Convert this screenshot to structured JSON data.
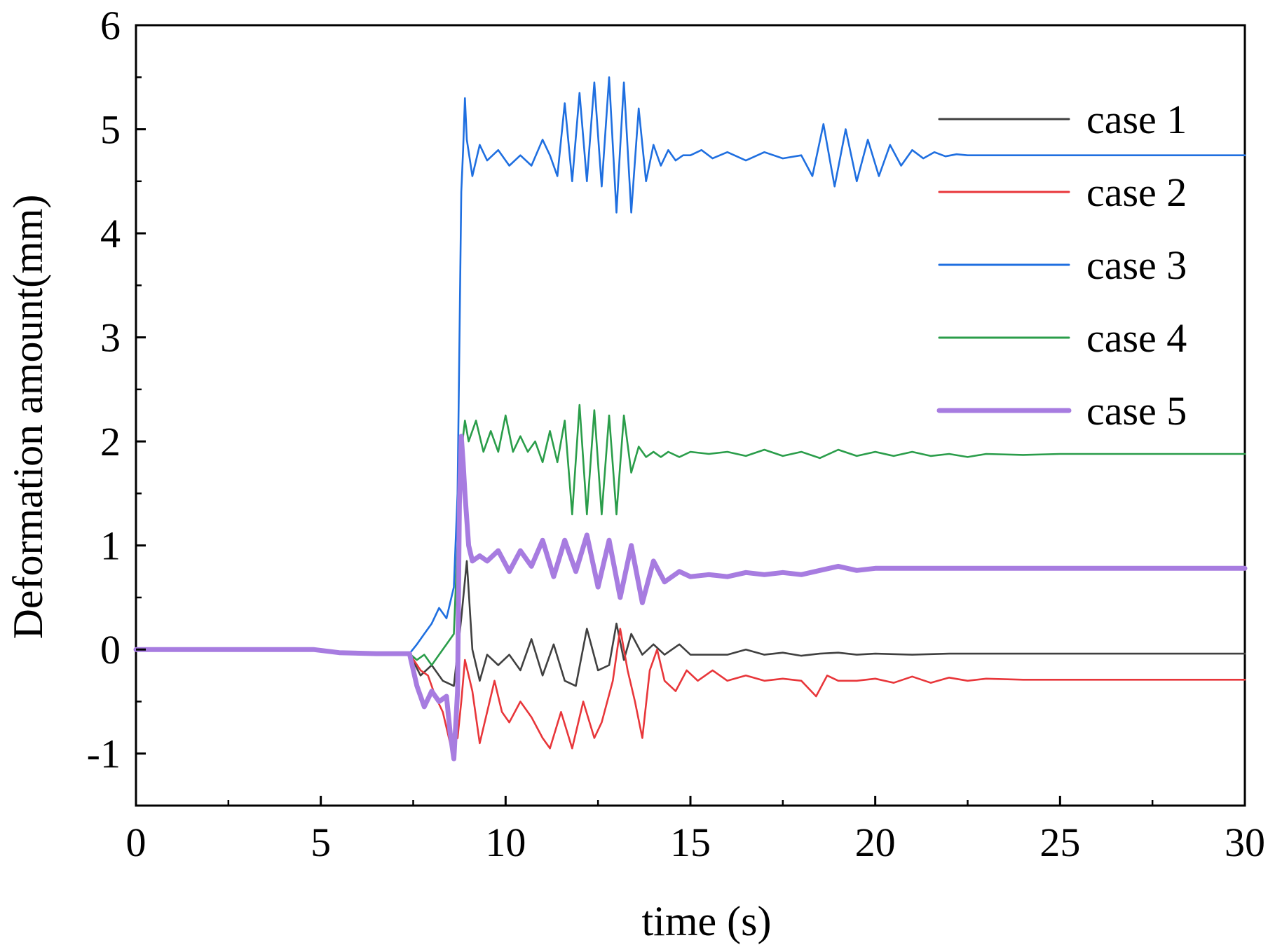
{
  "chart_data": {
    "type": "line",
    "xlabel": "time (s)",
    "ylabel": "Deformation amount(mm)",
    "xlim": [
      0,
      30
    ],
    "ylim": [
      -1.5,
      6
    ],
    "xticks": [
      0,
      5,
      10,
      15,
      20,
      25,
      30
    ],
    "yticks": [
      -1,
      0,
      1,
      2,
      3,
      4,
      5,
      6
    ],
    "xtick_labels": [
      "0",
      "5",
      "10",
      "15",
      "20",
      "25",
      "30"
    ],
    "ytick_labels": [
      "-1",
      "0",
      "1",
      "2",
      "3",
      "4",
      "5",
      "6"
    ],
    "grid": false,
    "legend_position": "top-right",
    "series": [
      {
        "name": "case 1",
        "color": "#404040",
        "thick": false,
        "x": [
          0,
          4.8,
          5.5,
          6.5,
          7.4,
          7.7,
          8.0,
          8.3,
          8.6,
          8.8,
          8.95,
          9.1,
          9.3,
          9.5,
          9.8,
          10.1,
          10.4,
          10.7,
          11.0,
          11.3,
          11.6,
          11.9,
          12.2,
          12.5,
          12.8,
          13.0,
          13.2,
          13.4,
          13.7,
          14.0,
          14.3,
          14.7,
          15.0,
          15.5,
          16.0,
          16.5,
          17.0,
          17.5,
          18.0,
          18.5,
          19.0,
          19.5,
          20.0,
          21.0,
          22.0,
          23.0,
          24.0,
          25.0,
          27.0,
          30.0
        ],
        "y": [
          0,
          0,
          -0.03,
          -0.04,
          -0.04,
          -0.25,
          -0.15,
          -0.3,
          -0.35,
          0.3,
          0.85,
          0.0,
          -0.3,
          -0.05,
          -0.15,
          -0.05,
          -0.2,
          0.1,
          -0.25,
          0.05,
          -0.3,
          -0.35,
          0.2,
          -0.2,
          -0.15,
          0.25,
          -0.1,
          0.15,
          -0.05,
          0.05,
          -0.05,
          0.05,
          -0.05,
          -0.05,
          -0.05,
          0.0,
          -0.05,
          -0.03,
          -0.06,
          -0.04,
          -0.03,
          -0.05,
          -0.04,
          -0.05,
          -0.04,
          -0.04,
          -0.04,
          -0.04,
          -0.04,
          -0.04
        ]
      },
      {
        "name": "case 2",
        "color": "#e8363a",
        "thick": false,
        "x": [
          0,
          4.8,
          5.5,
          6.5,
          7.4,
          7.7,
          7.9,
          8.1,
          8.3,
          8.5,
          8.7,
          8.8,
          8.9,
          9.1,
          9.3,
          9.5,
          9.7,
          9.9,
          10.1,
          10.4,
          10.7,
          11.0,
          11.2,
          11.5,
          11.8,
          12.1,
          12.4,
          12.6,
          12.9,
          13.1,
          13.3,
          13.5,
          13.7,
          13.9,
          14.1,
          14.3,
          14.6,
          14.9,
          15.2,
          15.6,
          16.0,
          16.5,
          17.0,
          17.5,
          18.0,
          18.4,
          18.7,
          19.0,
          19.5,
          20.0,
          20.5,
          21.0,
          21.5,
          22.0,
          22.5,
          23.0,
          24.0,
          25.0,
          27.0,
          30.0
        ],
        "y": [
          0,
          0,
          -0.03,
          -0.04,
          -0.04,
          -0.2,
          -0.25,
          -0.45,
          -0.6,
          -0.9,
          -0.85,
          -0.5,
          -0.1,
          -0.4,
          -0.9,
          -0.6,
          -0.3,
          -0.6,
          -0.7,
          -0.5,
          -0.65,
          -0.85,
          -0.95,
          -0.6,
          -0.95,
          -0.5,
          -0.85,
          -0.7,
          -0.3,
          0.2,
          -0.2,
          -0.5,
          -0.85,
          -0.2,
          0.0,
          -0.3,
          -0.4,
          -0.2,
          -0.3,
          -0.2,
          -0.3,
          -0.25,
          -0.3,
          -0.28,
          -0.3,
          -0.45,
          -0.25,
          -0.3,
          -0.3,
          -0.28,
          -0.32,
          -0.26,
          -0.32,
          -0.27,
          -0.3,
          -0.28,
          -0.29,
          -0.29,
          -0.29,
          -0.29
        ]
      },
      {
        "name": "case 3",
        "color": "#1f6fe0",
        "thick": false,
        "x": [
          0,
          4.8,
          5.5,
          6.5,
          7.4,
          7.6,
          7.8,
          8.0,
          8.2,
          8.4,
          8.6,
          8.7,
          8.8,
          8.85,
          8.9,
          8.95,
          9.1,
          9.3,
          9.5,
          9.8,
          10.1,
          10.4,
          10.7,
          11.0,
          11.2,
          11.4,
          11.6,
          11.8,
          12.0,
          12.2,
          12.4,
          12.6,
          12.8,
          13.0,
          13.2,
          13.4,
          13.6,
          13.8,
          14.0,
          14.2,
          14.4,
          14.6,
          14.8,
          15.0,
          15.3,
          15.6,
          16.0,
          16.5,
          17.0,
          17.5,
          18.0,
          18.3,
          18.6,
          18.9,
          19.2,
          19.5,
          19.8,
          20.1,
          20.4,
          20.7,
          21.0,
          21.3,
          21.6,
          21.9,
          22.2,
          22.5,
          23.0,
          24.0,
          25.0,
          27.0,
          30.0
        ],
        "y": [
          0,
          0,
          -0.03,
          -0.04,
          -0.04,
          0.05,
          0.15,
          0.25,
          0.4,
          0.3,
          0.6,
          1.5,
          4.4,
          4.8,
          5.3,
          4.9,
          4.55,
          4.85,
          4.7,
          4.8,
          4.65,
          4.75,
          4.65,
          4.9,
          4.75,
          4.55,
          5.25,
          4.5,
          5.35,
          4.5,
          5.45,
          4.45,
          5.5,
          4.2,
          5.45,
          4.2,
          5.2,
          4.5,
          4.85,
          4.65,
          4.8,
          4.7,
          4.75,
          4.75,
          4.8,
          4.72,
          4.78,
          4.7,
          4.78,
          4.72,
          4.75,
          4.55,
          5.05,
          4.45,
          5.0,
          4.5,
          4.9,
          4.55,
          4.85,
          4.65,
          4.8,
          4.72,
          4.78,
          4.74,
          4.76,
          4.75,
          4.75,
          4.75,
          4.75,
          4.75,
          4.75
        ]
      },
      {
        "name": "case 4",
        "color": "#2a9d4a",
        "thick": false,
        "x": [
          0,
          4.8,
          5.5,
          6.5,
          7.4,
          7.6,
          7.8,
          8.0,
          8.2,
          8.4,
          8.6,
          8.8,
          8.9,
          9.0,
          9.2,
          9.4,
          9.6,
          9.8,
          10.0,
          10.2,
          10.4,
          10.6,
          10.8,
          11.0,
          11.2,
          11.4,
          11.6,
          11.8,
          12.0,
          12.2,
          12.4,
          12.6,
          12.8,
          13.0,
          13.2,
          13.4,
          13.6,
          13.8,
          14.0,
          14.2,
          14.4,
          14.7,
          15.0,
          15.5,
          16.0,
          16.5,
          17.0,
          17.5,
          18.0,
          18.5,
          19.0,
          19.5,
          20.0,
          20.5,
          21.0,
          21.5,
          22.0,
          22.5,
          23.0,
          24.0,
          25.0,
          27.0,
          30.0
        ],
        "y": [
          0,
          0,
          -0.03,
          -0.04,
          -0.04,
          -0.1,
          -0.05,
          -0.15,
          -0.05,
          0.05,
          0.15,
          1.9,
          2.2,
          2.0,
          2.2,
          1.9,
          2.1,
          1.9,
          2.25,
          1.9,
          2.05,
          1.9,
          2.0,
          1.8,
          2.1,
          1.8,
          2.2,
          1.3,
          2.35,
          1.3,
          2.3,
          1.3,
          2.25,
          1.3,
          2.25,
          1.7,
          1.95,
          1.85,
          1.9,
          1.85,
          1.9,
          1.85,
          1.9,
          1.88,
          1.9,
          1.86,
          1.92,
          1.86,
          1.9,
          1.84,
          1.92,
          1.86,
          1.9,
          1.86,
          1.9,
          1.86,
          1.88,
          1.85,
          1.88,
          1.87,
          1.88,
          1.88,
          1.88
        ]
      },
      {
        "name": "case 5",
        "color": "#a77ce0",
        "thick": true,
        "x": [
          0,
          4.8,
          5.5,
          6.5,
          7.4,
          7.6,
          7.8,
          8.0,
          8.2,
          8.4,
          8.5,
          8.6,
          8.7,
          8.75,
          8.8,
          8.85,
          8.9,
          9.0,
          9.1,
          9.3,
          9.5,
          9.8,
          10.1,
          10.4,
          10.7,
          11.0,
          11.3,
          11.6,
          11.9,
          12.2,
          12.5,
          12.8,
          13.1,
          13.4,
          13.7,
          14.0,
          14.3,
          14.7,
          15.0,
          15.5,
          16.0,
          16.5,
          17.0,
          17.5,
          18.0,
          18.5,
          19.0,
          19.5,
          20.0,
          21.0,
          22.0,
          23.0,
          24.0,
          25.0,
          27.0,
          30.0
        ],
        "y": [
          0,
          0,
          -0.03,
          -0.04,
          -0.04,
          -0.35,
          -0.55,
          -0.4,
          -0.5,
          -0.45,
          -0.8,
          -1.05,
          -0.4,
          1.4,
          2.05,
          1.8,
          1.5,
          1.0,
          0.85,
          0.9,
          0.85,
          0.95,
          0.75,
          0.95,
          0.8,
          1.05,
          0.7,
          1.05,
          0.75,
          1.1,
          0.6,
          1.05,
          0.5,
          1.0,
          0.45,
          0.85,
          0.65,
          0.75,
          0.7,
          0.72,
          0.7,
          0.74,
          0.72,
          0.74,
          0.72,
          0.76,
          0.8,
          0.76,
          0.78,
          0.78,
          0.78,
          0.78,
          0.78,
          0.78,
          0.78,
          0.78
        ]
      }
    ]
  }
}
